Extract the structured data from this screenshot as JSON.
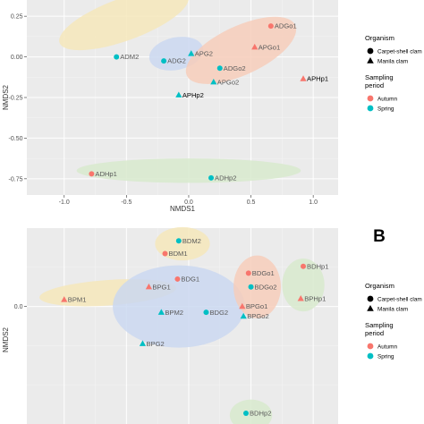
{
  "chart_data": [
    {
      "type": "scatter",
      "xlabel": "NMDS1",
      "ylabel": "NMDS2",
      "xlim": [
        -1.3,
        1.2
      ],
      "ylim": [
        -0.85,
        0.35
      ],
      "x_ticks": [
        -1.0,
        -0.5,
        0.0,
        0.5,
        1.0
      ],
      "x_tick_labels": [
        "-1.0",
        "-0.5",
        "0.0",
        "0.5",
        "1.0"
      ],
      "y_ticks": [
        0.25,
        0.0,
        -0.25,
        -0.5,
        -0.75
      ],
      "y_tick_labels": [
        "0.25",
        "0.00",
        "-0.25",
        "-0.50",
        "-0.75"
      ],
      "grid": true,
      "colors": {
        "autumn": "#f8766d",
        "spring": "#00bfc4"
      },
      "ellipses": [
        {
          "cx": -0.52,
          "cy": 0.23,
          "rx": 0.55,
          "ry": 0.13,
          "angle": -20,
          "color": "#f5e6b8"
        },
        {
          "cx": -0.1,
          "cy": 0.02,
          "rx": 0.22,
          "ry": 0.1,
          "angle": -12,
          "color": "#c9d7f0"
        },
        {
          "cx": 0.42,
          "cy": 0.04,
          "rx": 0.48,
          "ry": 0.15,
          "angle": -25,
          "color": "#f7ccb8"
        },
        {
          "cx": 0.0,
          "cy": -0.7,
          "rx": 0.9,
          "ry": 0.075,
          "angle": 0,
          "color": "#d7e9cc"
        }
      ],
      "points": [
        {
          "label": "ADGo1",
          "x": 0.66,
          "y": 0.19,
          "shape": "circle",
          "season": "autumn"
        },
        {
          "label": "APGo1",
          "x": 0.53,
          "y": 0.06,
          "shape": "triangle",
          "season": "autumn"
        },
        {
          "label": "APG2",
          "x": 0.02,
          "y": 0.02,
          "shape": "triangle",
          "season": "spring"
        },
        {
          "label": "ADM2",
          "x": -0.58,
          "y": 0.0,
          "shape": "circle",
          "season": "spring"
        },
        {
          "label": "ADG2",
          "x": -0.2,
          "y": -0.025,
          "shape": "circle",
          "season": "spring"
        },
        {
          "label": "ADGo2",
          "x": 0.25,
          "y": -0.07,
          "shape": "circle",
          "season": "spring"
        },
        {
          "label": "APHp1",
          "x": 0.92,
          "y": -0.135,
          "shape": "triangle",
          "season": "autumn"
        },
        {
          "label": "APGo2",
          "x": 0.2,
          "y": -0.155,
          "shape": "triangle",
          "season": "spring"
        },
        {
          "label": "APHp2",
          "x": -0.08,
          "y": -0.235,
          "shape": "triangle",
          "season": "spring"
        },
        {
          "label": "ADHp1",
          "x": -0.78,
          "y": -0.72,
          "shape": "circle",
          "season": "autumn"
        },
        {
          "label": "ADHp2",
          "x": 0.18,
          "y": -0.745,
          "shape": "circle",
          "season": "spring"
        }
      ]
    },
    {
      "type": "scatter",
      "panel_tag": "B",
      "ylabel": "NMDS2",
      "xlim": [
        -1.3,
        1.2
      ],
      "ylim": [
        -0.6,
        0.4
      ],
      "y_ticks": [
        0.0
      ],
      "y_tick_labels": [
        "0.0"
      ],
      "grid": true,
      "colors": {
        "autumn": "#f8766d",
        "spring": "#00bfc4"
      },
      "ellipses": [
        {
          "cx": -0.05,
          "cy": 0.32,
          "rx": 0.22,
          "ry": 0.085,
          "angle": 0,
          "color": "#f5e6b8"
        },
        {
          "cx": -0.65,
          "cy": 0.07,
          "rx": 0.55,
          "ry": 0.065,
          "angle": -4,
          "color": "#f5e6b8"
        },
        {
          "cx": -0.08,
          "cy": 0.0,
          "rx": 0.53,
          "ry": 0.21,
          "angle": 0,
          "color": "#c9d7f0"
        },
        {
          "cx": 0.55,
          "cy": 0.1,
          "rx": 0.19,
          "ry": 0.16,
          "angle": 0,
          "color": "#f7ccb8"
        },
        {
          "cx": 0.92,
          "cy": 0.11,
          "rx": 0.17,
          "ry": 0.135,
          "angle": 0,
          "color": "#d7e9cc"
        },
        {
          "cx": 0.5,
          "cy": -0.555,
          "rx": 0.17,
          "ry": 0.08,
          "angle": 0,
          "color": "#d7e9cc"
        }
      ],
      "points": [
        {
          "label": "BDM2",
          "x": -0.08,
          "y": 0.335,
          "shape": "circle",
          "season": "spring"
        },
        {
          "label": "BDM1",
          "x": -0.19,
          "y": 0.27,
          "shape": "circle",
          "season": "autumn"
        },
        {
          "label": "BDHp1",
          "x": 0.92,
          "y": 0.205,
          "shape": "circle",
          "season": "autumn"
        },
        {
          "label": "BDG1",
          "x": -0.09,
          "y": 0.14,
          "shape": "circle",
          "season": "autumn"
        },
        {
          "label": "BDGo1",
          "x": 0.48,
          "y": 0.17,
          "shape": "circle",
          "season": "autumn"
        },
        {
          "label": "BPG1",
          "x": -0.32,
          "y": 0.1,
          "shape": "triangle",
          "season": "autumn"
        },
        {
          "label": "BDGo2",
          "x": 0.5,
          "y": 0.1,
          "shape": "circle",
          "season": "spring"
        },
        {
          "label": "BPHp1",
          "x": 0.9,
          "y": 0.04,
          "shape": "triangle",
          "season": "autumn"
        },
        {
          "label": "BPM1",
          "x": -1.0,
          "y": 0.035,
          "shape": "triangle",
          "season": "autumn"
        },
        {
          "label": "BPGo1",
          "x": 0.43,
          "y": 0.0,
          "shape": "triangle",
          "season": "autumn"
        },
        {
          "label": "BPM2",
          "x": -0.22,
          "y": -0.03,
          "shape": "triangle",
          "season": "spring"
        },
        {
          "label": "BDG2",
          "x": 0.14,
          "y": -0.03,
          "shape": "circle",
          "season": "spring"
        },
        {
          "label": "BPGo2",
          "x": 0.44,
          "y": -0.05,
          "shape": "triangle",
          "season": "spring"
        },
        {
          "label": "BPG2",
          "x": -0.37,
          "y": -0.19,
          "shape": "triangle",
          "season": "spring"
        },
        {
          "label": "BDHp2",
          "x": 0.46,
          "y": -0.545,
          "shape": "circle",
          "season": "spring"
        }
      ]
    }
  ],
  "legend": {
    "organism_title": "Organism",
    "organism_items": [
      {
        "label": "Carpet-shell clam",
        "shape": "circle"
      },
      {
        "label": "Manila clam",
        "shape": "triangle"
      }
    ],
    "period_title_line1": "Sampling",
    "period_title_line2": "period",
    "period_items": [
      {
        "label": "Autumn",
        "color": "#f8766d"
      },
      {
        "label": "Spring",
        "color": "#00bfc4"
      }
    ]
  }
}
